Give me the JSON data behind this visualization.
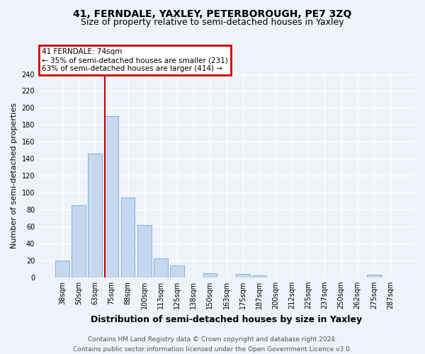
{
  "title": "41, FERNDALE, YAXLEY, PETERBOROUGH, PE7 3ZQ",
  "subtitle": "Size of property relative to semi-detached houses in Yaxley",
  "xlabel": "Distribution of semi-detached houses by size in Yaxley",
  "ylabel": "Number of semi-detached properties",
  "categories": [
    "38sqm",
    "50sqm",
    "63sqm",
    "75sqm",
    "88sqm",
    "100sqm",
    "113sqm",
    "125sqm",
    "138sqm",
    "150sqm",
    "163sqm",
    "175sqm",
    "187sqm",
    "200sqm",
    "212sqm",
    "225sqm",
    "237sqm",
    "250sqm",
    "262sqm",
    "275sqm",
    "287sqm"
  ],
  "values": [
    20,
    85,
    146,
    190,
    94,
    62,
    22,
    14,
    0,
    5,
    0,
    4,
    2,
    0,
    0,
    0,
    0,
    0,
    0,
    3,
    0
  ],
  "bar_color": "#c5d8ef",
  "bar_edge_color": "#7fb3d8",
  "subject_bar_index": 3,
  "annotation_title": "41 FERNDALE: 74sqm",
  "annotation_line1": "← 35% of semi-detached houses are smaller (231)",
  "annotation_line2": "63% of semi-detached houses are larger (414) →",
  "annotation_box_edge_color": "#cc0000",
  "subject_line_color": "#cc0000",
  "ylim": [
    0,
    240
  ],
  "yticks": [
    0,
    20,
    40,
    60,
    80,
    100,
    120,
    140,
    160,
    180,
    200,
    220,
    240
  ],
  "bg_color": "#eef2f9",
  "grid_color": "#ffffff",
  "title_fontsize": 10,
  "subtitle_fontsize": 9,
  "xlabel_fontsize": 9,
  "ylabel_fontsize": 8,
  "tick_fontsize": 7,
  "ann_fontsize": 7.5,
  "footer_fontsize": 6.5,
  "footer_line1": "Contains HM Land Registry data © Crown copyright and database right 2024.",
  "footer_line2": "Contains public sector information licensed under the Open Government Licence v3.0."
}
